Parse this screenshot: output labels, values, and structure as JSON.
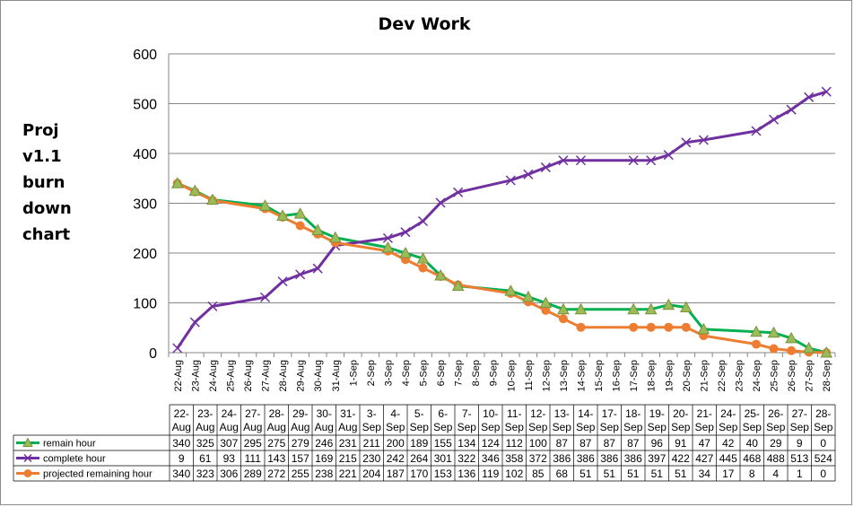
{
  "chart_data": {
    "type": "line",
    "title": "Dev Work",
    "side_label": [
      "Proj",
      "v1.1",
      "burn",
      "down",
      "chart"
    ],
    "ylim": [
      0,
      600
    ],
    "yticks": [
      0,
      100,
      200,
      300,
      400,
      500,
      600
    ],
    "grid": "horizontal",
    "legend": "data-table-bottom",
    "categories": [
      "22-Aug",
      "23-Aug",
      "24-Aug",
      "25-Aug",
      "26-Aug",
      "27-Aug",
      "28-Aug",
      "29-Aug",
      "30-Aug",
      "31-Aug",
      "1-Sep",
      "2-Sep",
      "3-Sep",
      "4-Sep",
      "5-Sep",
      "6-Sep",
      "7-Sep",
      "8-Sep",
      "9-Sep",
      "10-Sep",
      "11-Sep",
      "12-Sep",
      "13-Sep",
      "14-Sep",
      "15-Sep",
      "16-Sep",
      "17-Sep",
      "18-Sep",
      "19-Sep",
      "20-Sep",
      "21-Sep",
      "22-Sep",
      "23-Sep",
      "24-Sep",
      "25-Sep",
      "26-Sep",
      "27-Sep",
      "28-Sep"
    ],
    "table_columns": [
      {
        "top": "22-",
        "bottom": "Aug"
      },
      {
        "top": "23-",
        "bottom": "Aug"
      },
      {
        "top": "24-",
        "bottom": "Aug"
      },
      {
        "top": "27-",
        "bottom": "Aug"
      },
      {
        "top": "28-",
        "bottom": "Aug"
      },
      {
        "top": "29-",
        "bottom": "Aug"
      },
      {
        "top": "30-",
        "bottom": "Aug"
      },
      {
        "top": "31-",
        "bottom": "Aug"
      },
      {
        "top": "3-",
        "bottom": "Sep"
      },
      {
        "top": "4-",
        "bottom": "Sep"
      },
      {
        "top": "5-",
        "bottom": "Sep"
      },
      {
        "top": "6-",
        "bottom": "Sep"
      },
      {
        "top": "7-",
        "bottom": "Sep"
      },
      {
        "top": "10-",
        "bottom": "Sep"
      },
      {
        "top": "11-",
        "bottom": "Sep"
      },
      {
        "top": "12-",
        "bottom": "Sep"
      },
      {
        "top": "13-",
        "bottom": "Sep"
      },
      {
        "top": "14-",
        "bottom": "Sep"
      },
      {
        "top": "17-",
        "bottom": "Sep"
      },
      {
        "top": "18-",
        "bottom": "Sep"
      },
      {
        "top": "19-",
        "bottom": "Sep"
      },
      {
        "top": "20-",
        "bottom": "Sep"
      },
      {
        "top": "21-",
        "bottom": "Sep"
      },
      {
        "top": "24-",
        "bottom": "Sep"
      },
      {
        "top": "25-",
        "bottom": "Sep"
      },
      {
        "top": "26-",
        "bottom": "Sep"
      },
      {
        "top": "27-",
        "bottom": "Sep"
      },
      {
        "top": "28-",
        "bottom": "Sep"
      }
    ],
    "series": [
      {
        "name": "remain hour",
        "color": "#00b050",
        "marker": "triangle",
        "marker_color": "#9bbb59",
        "x": [
          "22-Aug",
          "23-Aug",
          "24-Aug",
          "27-Aug",
          "28-Aug",
          "29-Aug",
          "30-Aug",
          "31-Aug",
          "3-Sep",
          "4-Sep",
          "5-Sep",
          "6-Sep",
          "7-Sep",
          "10-Sep",
          "11-Sep",
          "12-Sep",
          "13-Sep",
          "14-Sep",
          "17-Sep",
          "18-Sep",
          "19-Sep",
          "20-Sep",
          "21-Sep",
          "24-Sep",
          "25-Sep",
          "26-Sep",
          "27-Sep",
          "28-Sep"
        ],
        "values": [
          340,
          325,
          307,
          295,
          275,
          279,
          246,
          231,
          211,
          200,
          189,
          155,
          134,
          124,
          112,
          100,
          87,
          87,
          87,
          87,
          96,
          91,
          47,
          42,
          40,
          29,
          9,
          0
        ]
      },
      {
        "name": "complete hour",
        "color": "#7030a0",
        "marker": "x",
        "marker_color": "#7030a0",
        "x": [
          "22-Aug",
          "23-Aug",
          "24-Aug",
          "27-Aug",
          "28-Aug",
          "29-Aug",
          "30-Aug",
          "31-Aug",
          "3-Sep",
          "4-Sep",
          "5-Sep",
          "6-Sep",
          "7-Sep",
          "10-Sep",
          "11-Sep",
          "12-Sep",
          "13-Sep",
          "14-Sep",
          "17-Sep",
          "18-Sep",
          "19-Sep",
          "20-Sep",
          "21-Sep",
          "24-Sep",
          "25-Sep",
          "26-Sep",
          "27-Sep",
          "28-Sep"
        ],
        "values": [
          9,
          61,
          93,
          111,
          143,
          157,
          169,
          215,
          230,
          242,
          264,
          301,
          322,
          346,
          358,
          372,
          386,
          386,
          386,
          386,
          397,
          422,
          427,
          445,
          468,
          488,
          513,
          524
        ]
      },
      {
        "name": "projected remaining hour",
        "color": "#ed7d31",
        "marker": "circle",
        "marker_color": "#ed7d31",
        "x": [
          "22-Aug",
          "23-Aug",
          "24-Aug",
          "27-Aug",
          "28-Aug",
          "29-Aug",
          "30-Aug",
          "31-Aug",
          "3-Sep",
          "4-Sep",
          "5-Sep",
          "6-Sep",
          "7-Sep",
          "10-Sep",
          "11-Sep",
          "12-Sep",
          "13-Sep",
          "14-Sep",
          "17-Sep",
          "18-Sep",
          "19-Sep",
          "20-Sep",
          "21-Sep",
          "24-Sep",
          "25-Sep",
          "26-Sep",
          "27-Sep",
          "28-Sep"
        ],
        "values": [
          340,
          323,
          306,
          289,
          272,
          255,
          238,
          221,
          204,
          187,
          170,
          153,
          136,
          119,
          102,
          85,
          68,
          51,
          51,
          51,
          51,
          51,
          34,
          17,
          8,
          4,
          1,
          0
        ]
      }
    ]
  }
}
